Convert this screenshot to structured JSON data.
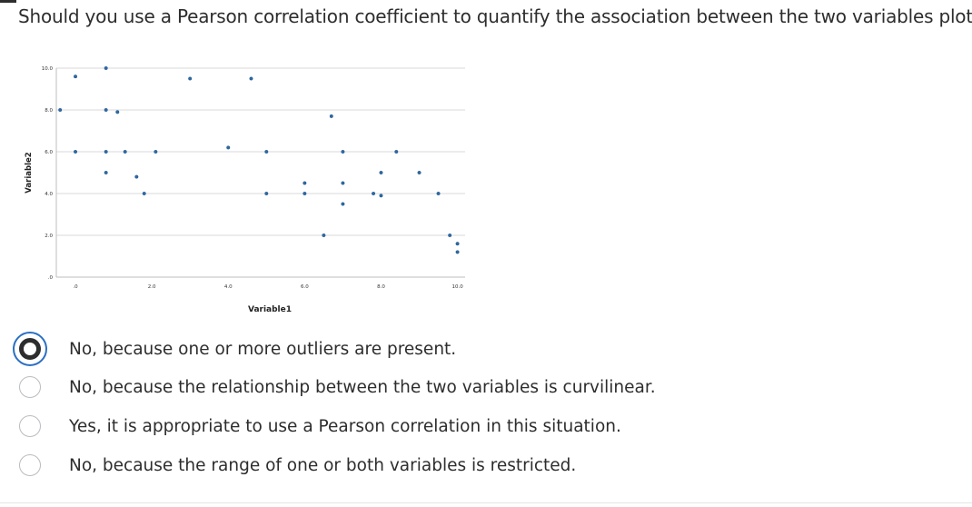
{
  "question": "Should you use a Pearson correlation coefficient to quantify the association between the two variables plotted?",
  "chart_data": {
    "type": "scatter",
    "xlabel": "Variable1",
    "ylabel": "Variable2",
    "xlim": [
      -0.5,
      10.2
    ],
    "ylim": [
      0,
      10
    ],
    "x_ticks": [
      ".0",
      "2.0",
      "4.0",
      "6.0",
      "8.0",
      "10.0"
    ],
    "x_tick_values": [
      0,
      2,
      4,
      6,
      8,
      10
    ],
    "y_ticks": [
      ".0",
      "2.0",
      "4.0",
      "6.0",
      "8.0",
      "10.0"
    ],
    "y_tick_values": [
      0,
      2,
      4,
      6,
      8,
      10
    ],
    "grid": "horizontal",
    "point_color": "#2b6aa8",
    "points": [
      [
        0.8,
        10.0
      ],
      [
        0.0,
        9.6
      ],
      [
        3.0,
        9.5
      ],
      [
        4.6,
        9.5
      ],
      [
        -0.4,
        8.0
      ],
      [
        0.8,
        8.0
      ],
      [
        1.1,
        7.9
      ],
      [
        6.7,
        7.7
      ],
      [
        0.0,
        6.0
      ],
      [
        0.8,
        6.0
      ],
      [
        1.3,
        6.0
      ],
      [
        2.1,
        6.0
      ],
      [
        4.0,
        6.2
      ],
      [
        5.0,
        6.0
      ],
      [
        7.0,
        6.0
      ],
      [
        8.4,
        6.0
      ],
      [
        0.8,
        5.0
      ],
      [
        1.6,
        4.8
      ],
      [
        8.0,
        5.0
      ],
      [
        9.0,
        5.0
      ],
      [
        6.0,
        4.5
      ],
      [
        7.0,
        4.5
      ],
      [
        1.8,
        4.0
      ],
      [
        5.0,
        4.0
      ],
      [
        6.0,
        4.0
      ],
      [
        7.8,
        4.0
      ],
      [
        8.0,
        3.9
      ],
      [
        9.5,
        4.0
      ],
      [
        7.0,
        3.5
      ],
      [
        6.5,
        2.0
      ],
      [
        9.8,
        2.0
      ],
      [
        10.0,
        1.6
      ],
      [
        10.0,
        1.2
      ]
    ]
  },
  "options": [
    {
      "label": "No, because one or more outliers are present.",
      "selected": true
    },
    {
      "label": "No, because the relationship between the two variables is curvilinear.",
      "selected": false
    },
    {
      "label": "Yes, it is appropriate to use a Pearson correlation in this situation.",
      "selected": false
    },
    {
      "label": "No, because the range of one or both variables is restricted.",
      "selected": false
    }
  ]
}
